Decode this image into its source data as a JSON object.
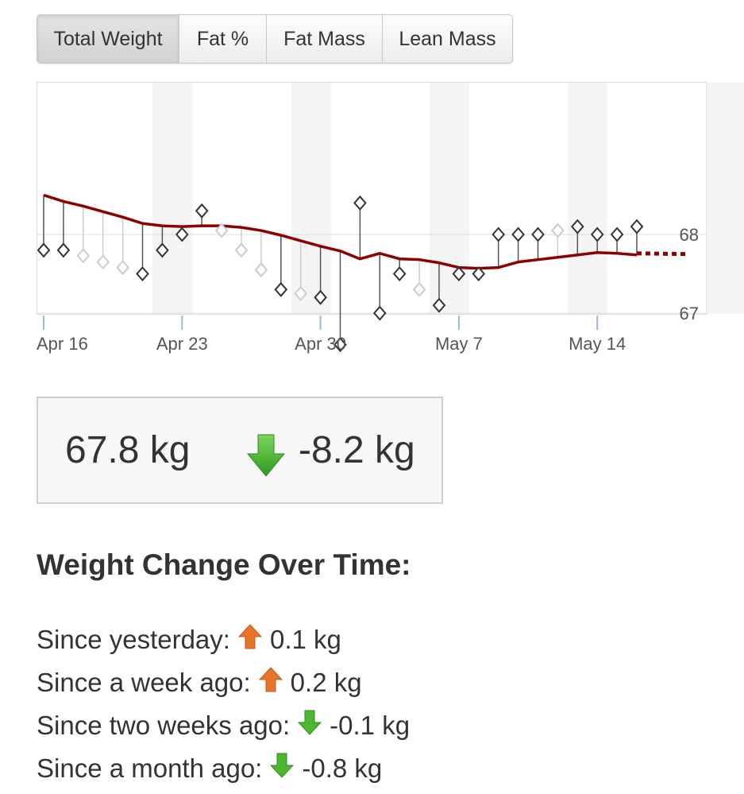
{
  "tabs": [
    {
      "label": "Total Weight",
      "active": true
    },
    {
      "label": "Fat %",
      "active": false
    },
    {
      "label": "Fat Mass",
      "active": false
    },
    {
      "label": "Lean Mass",
      "active": false
    }
  ],
  "chart_data": {
    "type": "line",
    "x_tick_labels": [
      "Apr 16",
      "Apr 23",
      "Apr 30",
      "May 7",
      "May 14"
    ],
    "y_tick_labels": [
      "67",
      "68"
    ],
    "ylim": [
      66.0,
      69.0
    ],
    "grid": true,
    "trend_color": "#8b0000",
    "series": [
      {
        "kind": "trend",
        "x": [
          15,
          16,
          17,
          18,
          19,
          20,
          21,
          22,
          23,
          24,
          25,
          26,
          27,
          28,
          29,
          30,
          31,
          32,
          33,
          34,
          35,
          36,
          37,
          38,
          39,
          40,
          41,
          42,
          43,
          44,
          45
        ],
        "y": [
          68.5,
          68.42,
          68.36,
          68.29,
          68.22,
          68.14,
          68.11,
          68.1,
          68.11,
          68.11,
          68.09,
          68.05,
          67.99,
          67.92,
          67.85,
          67.79,
          67.69,
          67.76,
          67.69,
          67.68,
          67.64,
          67.58,
          67.57,
          67.58,
          67.65,
          67.68,
          67.71,
          67.74,
          67.77,
          67.76,
          67.74
        ],
        "forecast_x": [
          45,
          50
        ],
        "forecast_y": [
          67.76,
          67.75
        ]
      },
      {
        "kind": "measurements",
        "x": [
          15,
          16,
          17,
          18,
          19,
          20,
          21,
          22,
          23,
          24,
          25,
          26,
          27,
          28,
          29,
          30,
          31,
          32,
          33,
          34,
          35,
          36,
          37,
          38,
          39,
          40,
          41,
          42,
          43,
          44,
          45
        ],
        "y": [
          67.8,
          67.8,
          67.73,
          67.65,
          67.58,
          67.5,
          67.8,
          68.0,
          68.3,
          68.05,
          67.8,
          67.55,
          67.3,
          67.25,
          67.2,
          66.6,
          68.4,
          67.0,
          67.5,
          67.3,
          67.1,
          67.5,
          67.5,
          68.0,
          68.0,
          68.0,
          68.05,
          68.1,
          68.0,
          68.0,
          68.1
        ],
        "estimated": [
          false,
          false,
          true,
          true,
          true,
          false,
          false,
          false,
          false,
          true,
          true,
          true,
          false,
          true,
          false,
          false,
          false,
          false,
          false,
          true,
          false,
          false,
          false,
          false,
          false,
          false,
          true,
          false,
          false,
          false,
          false
        ]
      }
    ]
  },
  "summary": {
    "current_weight": "67.8 kg",
    "total_change": "-8.2 kg",
    "direction": "down"
  },
  "changes_heading": "Weight Change Over Time:",
  "changes": [
    {
      "label": "Since yesterday:",
      "value": "0.1 kg",
      "direction": "up"
    },
    {
      "label": "Since a week ago:",
      "value": "0.2 kg",
      "direction": "up"
    },
    {
      "label": "Since two weeks ago:",
      "value": "-0.1 kg",
      "direction": "down"
    },
    {
      "label": "Since a month ago:",
      "value": "-0.8 kg",
      "direction": "down"
    }
  ],
  "colors": {
    "up_arrow": "#e8742a",
    "down_arrow": "#4cb830",
    "trend": "#8b0000"
  }
}
